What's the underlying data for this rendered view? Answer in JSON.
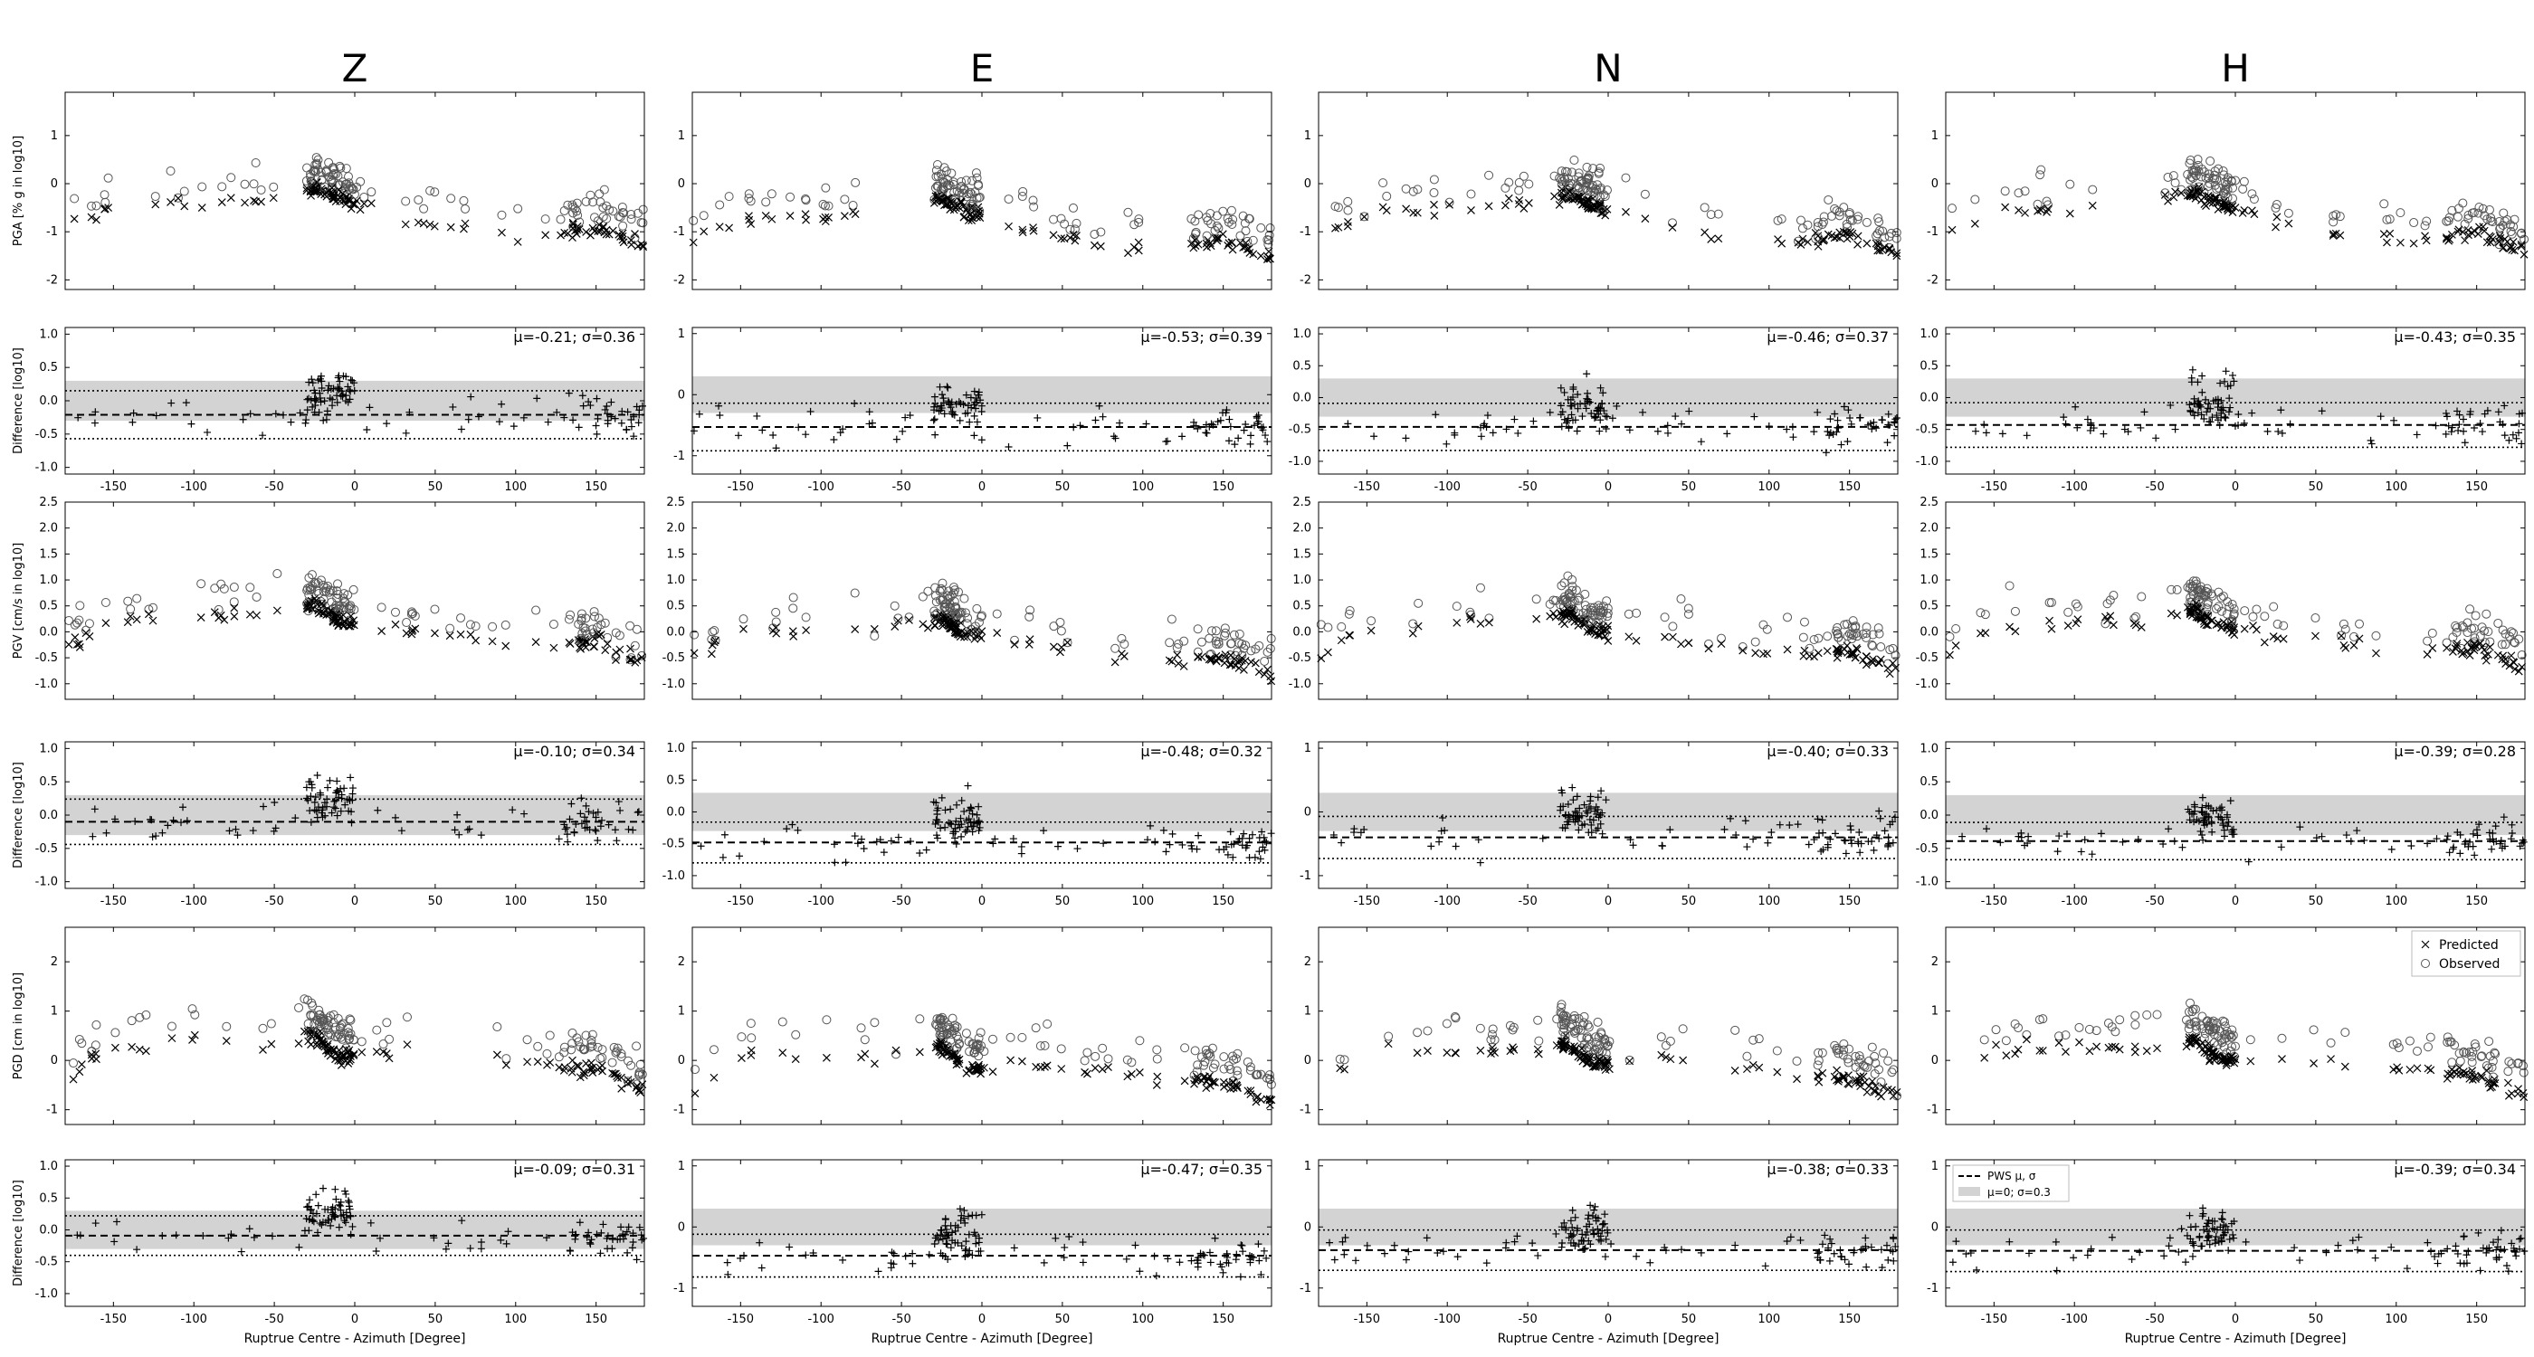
{
  "figure": {
    "column_titles": [
      "Z",
      "E",
      "N",
      "H"
    ],
    "row_ylabels": [
      "PGA [% g in log10]",
      "PGV [cm/s in log10]",
      "PGD [cm in log10]"
    ],
    "diff_ylabel": "Difference [log10]",
    "xlabel": "Ruptrue Centre - Azimuth [Degree]",
    "legend_main": [
      "Predicted",
      "Observed"
    ],
    "legend_diff": [
      "PWS μ, σ",
      "μ=0; σ=0.3"
    ]
  },
  "chart_data": {
    "type": "scatter",
    "xlim": [
      -180,
      180
    ],
    "x_ticks": [
      -150,
      -100,
      -50,
      0,
      50,
      100,
      150
    ],
    "band": {
      "mu": 0,
      "sigma": 0.3
    },
    "rows": [
      {
        "metric": "PGA",
        "ylim": [
          -2.2,
          1.9
        ],
        "yticks": [
          -2,
          -1,
          0,
          1
        ],
        "obs_offset": 0.4,
        "pred_offset": 0,
        "anchors": [
          [
            -180,
            -0.9
          ],
          [
            -150,
            -0.5
          ],
          [
            -100,
            -0.4
          ],
          [
            -60,
            -0.3
          ],
          [
            -25,
            -0.1
          ],
          [
            -10,
            -0.3
          ],
          [
            10,
            -0.5
          ],
          [
            40,
            -0.8
          ],
          [
            80,
            -1.0
          ],
          [
            120,
            -1.1
          ],
          [
            150,
            -0.9
          ],
          [
            180,
            -1.3
          ]
        ]
      },
      {
        "metric": "PGV",
        "ylim": [
          -1.3,
          2.5
        ],
        "yticks": [
          -1.0,
          -0.5,
          0.0,
          0.5,
          1.0,
          1.5,
          2.0,
          2.5
        ],
        "obs_offset": 0.35,
        "pred_offset": 0,
        "anchors": [
          [
            -180,
            -0.3
          ],
          [
            -150,
            0.2
          ],
          [
            -100,
            0.3
          ],
          [
            -60,
            0.3
          ],
          [
            -25,
            0.5
          ],
          [
            -10,
            0.2
          ],
          [
            10,
            0.1
          ],
          [
            40,
            0.0
          ],
          [
            80,
            -0.2
          ],
          [
            120,
            -0.3
          ],
          [
            150,
            -0.2
          ],
          [
            180,
            -0.6
          ]
        ]
      },
      {
        "metric": "PGD",
        "ylim": [
          -1.3,
          2.7
        ],
        "yticks": [
          -1,
          0,
          1,
          2
        ],
        "obs_offset": 0.45,
        "pred_offset": 0,
        "anchors": [
          [
            -180,
            -0.4
          ],
          [
            -150,
            0.3
          ],
          [
            -100,
            0.4
          ],
          [
            -60,
            0.3
          ],
          [
            -25,
            0.5
          ],
          [
            -10,
            0.1
          ],
          [
            10,
            0.1
          ],
          [
            40,
            0.2
          ],
          [
            80,
            0.0
          ],
          [
            120,
            -0.1
          ],
          [
            150,
            -0.2
          ],
          [
            180,
            -0.6
          ]
        ]
      }
    ],
    "diff_panels": [
      [
        {
          "stat": "μ=-0.21; σ=0.36",
          "mu": -0.21,
          "sigma": 0.36,
          "ylim": [
            -1.1,
            1.1
          ],
          "yticks": [
            -1.0,
            -0.5,
            0.0,
            0.5,
            1.0
          ]
        },
        {
          "stat": "μ=-0.53; σ=0.39",
          "mu": -0.53,
          "sigma": 0.39,
          "ylim": [
            -1.3,
            1.1
          ],
          "yticks": [
            -1,
            0,
            1
          ]
        },
        {
          "stat": "μ=-0.46; σ=0.37",
          "mu": -0.46,
          "sigma": 0.37,
          "ylim": [
            -1.2,
            1.1
          ],
          "yticks": [
            -1.0,
            -0.5,
            0.0,
            0.5,
            1.0
          ]
        },
        {
          "stat": "μ=-0.43; σ=0.35",
          "mu": -0.43,
          "sigma": 0.35,
          "ylim": [
            -1.2,
            1.1
          ],
          "yticks": [
            -1.0,
            -0.5,
            0.0,
            0.5,
            1.0
          ]
        }
      ],
      [
        {
          "stat": "μ=-0.10; σ=0.34",
          "mu": -0.1,
          "sigma": 0.34,
          "ylim": [
            -1.1,
            1.1
          ],
          "yticks": [
            -1.0,
            -0.5,
            0.0,
            0.5,
            1.0
          ]
        },
        {
          "stat": "μ=-0.48; σ=0.32",
          "mu": -0.48,
          "sigma": 0.32,
          "ylim": [
            -1.2,
            1.1
          ],
          "yticks": [
            -1.0,
            -0.5,
            0.0,
            0.5,
            1.0
          ]
        },
        {
          "stat": "μ=-0.40; σ=0.33",
          "mu": -0.4,
          "sigma": 0.33,
          "ylim": [
            -1.2,
            1.1
          ],
          "yticks": [
            -1,
            0,
            1
          ]
        },
        {
          "stat": "μ=-0.39; σ=0.28",
          "mu": -0.39,
          "sigma": 0.28,
          "ylim": [
            -1.1,
            1.1
          ],
          "yticks": [
            -1.0,
            -0.5,
            0.0,
            0.5,
            1.0
          ]
        }
      ],
      [
        {
          "stat": "μ=-0.09; σ=0.31",
          "mu": -0.09,
          "sigma": 0.31,
          "ylim": [
            -1.2,
            1.1
          ],
          "yticks": [
            -1.0,
            -0.5,
            0.0,
            0.5,
            1.0
          ]
        },
        {
          "stat": "μ=-0.47; σ=0.35",
          "mu": -0.47,
          "sigma": 0.35,
          "ylim": [
            -1.3,
            1.1
          ],
          "yticks": [
            -1,
            0,
            1
          ]
        },
        {
          "stat": "μ=-0.38; σ=0.33",
          "mu": -0.38,
          "sigma": 0.33,
          "ylim": [
            -1.3,
            1.1
          ],
          "yticks": [
            -1,
            0,
            1
          ]
        },
        {
          "stat": "μ=-0.39; σ=0.34",
          "mu": -0.39,
          "sigma": 0.34,
          "ylim": [
            -1.3,
            1.1
          ],
          "yticks": [
            -1,
            0,
            1
          ]
        }
      ]
    ],
    "colors": {
      "predicted": "#000000",
      "observed": "#555555",
      "band": "#d3d3d3",
      "axis": "#000000"
    }
  }
}
